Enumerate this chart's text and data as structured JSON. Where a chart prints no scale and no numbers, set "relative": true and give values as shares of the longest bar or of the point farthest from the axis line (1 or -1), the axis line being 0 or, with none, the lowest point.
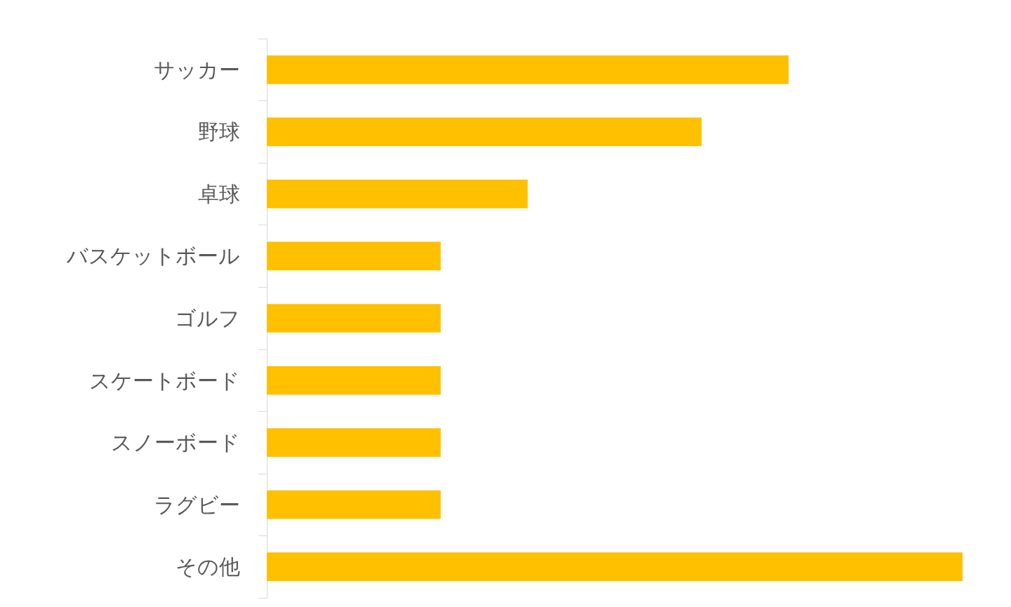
{
  "chart_data": {
    "type": "bar",
    "orientation": "horizontal",
    "relative": true,
    "color": "#ffc000",
    "categories": [
      "サッカー",
      "野球",
      "卓球",
      "バスケットボール",
      "ゴルフ",
      "スケートボード",
      "スノーボード",
      "ラグビー",
      "その他"
    ],
    "values": [
      0.75,
      0.625,
      0.375,
      0.25,
      0.25,
      0.25,
      0.25,
      0.25,
      1
    ]
  }
}
